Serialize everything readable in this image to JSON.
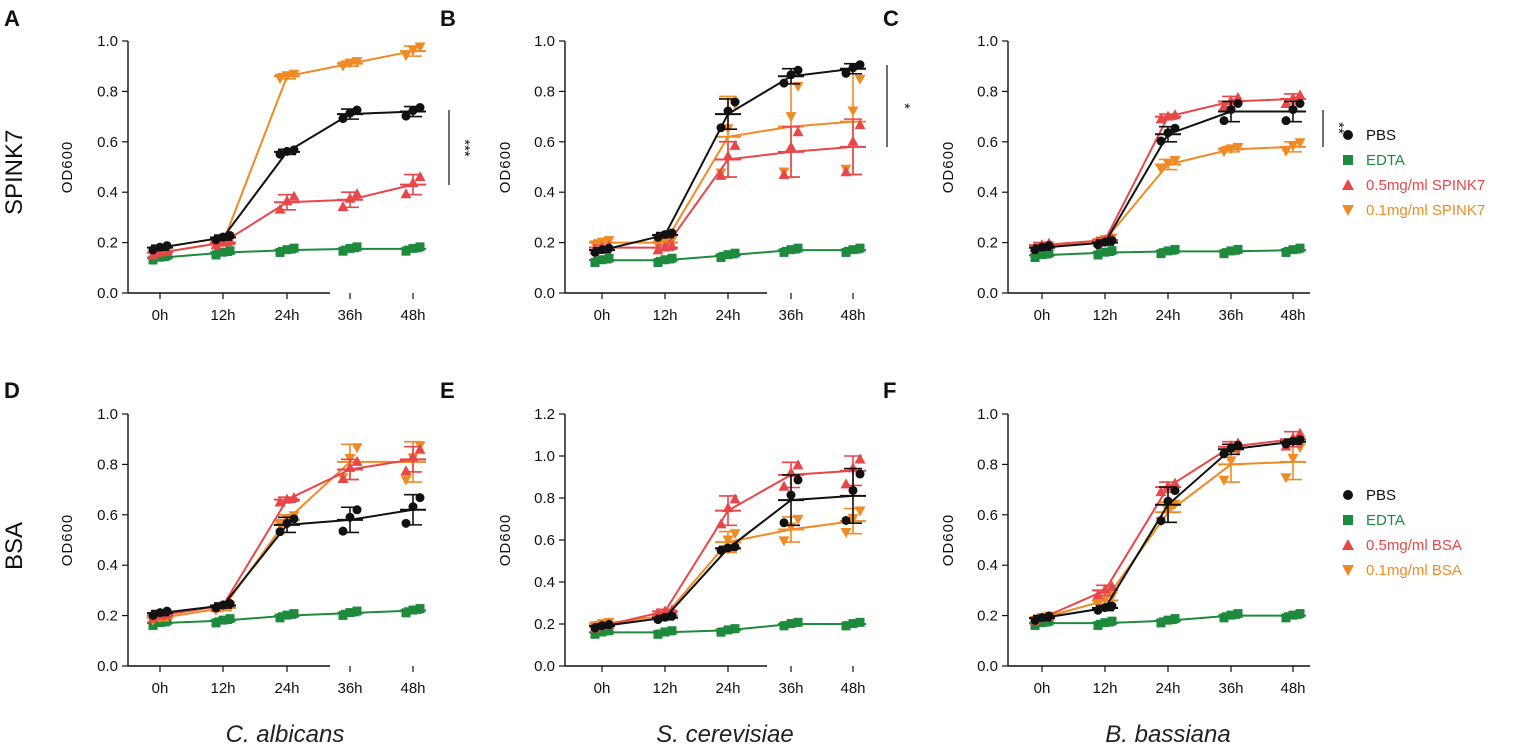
{
  "row_labels": [
    "SPINK7",
    "BSA"
  ],
  "species_labels": [
    "C. albicans",
    "S. cerevisiae",
    "B. bassiana"
  ],
  "colors": {
    "PBS": "#111111",
    "EDTA": "#1e8a3c",
    "high": "#e8474a",
    "low": "#f08a24"
  },
  "legends": [
    {
      "items": [
        {
          "label": "PBS",
          "series": "PBS",
          "marker": "circle"
        },
        {
          "label": "EDTA",
          "series": "EDTA",
          "marker": "square"
        },
        {
          "label": "0.5mg/ml  SPINK7",
          "series": "high",
          "marker": "triangle-up"
        },
        {
          "label": "0.1mg/ml  SPINK7",
          "series": "low",
          "marker": "triangle-down"
        }
      ]
    },
    {
      "items": [
        {
          "label": "PBS",
          "series": "PBS",
          "marker": "circle"
        },
        {
          "label": "EDTA",
          "series": "EDTA",
          "marker": "square"
        },
        {
          "label": "0.5mg/ml  BSA",
          "series": "high",
          "marker": "triangle-up"
        },
        {
          "label": "0.1mg/ml  BSA",
          "series": "low",
          "marker": "triangle-down"
        }
      ]
    }
  ],
  "chart_data": [
    {
      "panel": "A",
      "type": "line",
      "xlabel": "",
      "ylabel": "OD600",
      "categories": [
        "0h",
        "12h",
        "24h",
        "36h",
        "48h"
      ],
      "ylim": [
        0,
        1.0
      ],
      "yticks": [
        "0.0",
        "0.2",
        "0.4",
        "0.6",
        "0.8",
        "1.0"
      ],
      "significance": "***",
      "series": [
        {
          "name": "PBS",
          "values": [
            0.18,
            0.22,
            0.56,
            0.71,
            0.72
          ],
          "err": [
            0.01,
            0.01,
            0.01,
            0.02,
            0.02
          ]
        },
        {
          "name": "EDTA",
          "values": [
            0.14,
            0.16,
            0.17,
            0.175,
            0.175
          ],
          "err": [
            0.01,
            0.01,
            0.01,
            0.01,
            0.01
          ]
        },
        {
          "name": "0.5mg/ml SPINK7",
          "values": [
            0.16,
            0.2,
            0.36,
            0.37,
            0.43
          ],
          "err": [
            0.01,
            0.01,
            0.03,
            0.03,
            0.04
          ]
        },
        {
          "name": "0.1mg/ml SPINK7",
          "values": [
            0.16,
            0.2,
            0.86,
            0.91,
            0.96
          ],
          "err": [
            0.01,
            0.01,
            0.01,
            0.01,
            0.02
          ]
        }
      ]
    },
    {
      "panel": "B",
      "type": "line",
      "xlabel": "",
      "ylabel": "OD600",
      "categories": [
        "0h",
        "12h",
        "24h",
        "36h",
        "48h"
      ],
      "ylim": [
        0,
        1.0
      ],
      "yticks": [
        "0.0",
        "0.2",
        "0.4",
        "0.6",
        "0.8",
        "1.0"
      ],
      "significance": "*",
      "series": [
        {
          "name": "PBS",
          "values": [
            0.17,
            0.23,
            0.71,
            0.86,
            0.89
          ],
          "err": [
            0.01,
            0.01,
            0.06,
            0.03,
            0.02
          ]
        },
        {
          "name": "EDTA",
          "values": [
            0.13,
            0.13,
            0.15,
            0.17,
            0.17
          ],
          "err": [
            0.01,
            0.01,
            0.01,
            0.01,
            0.01
          ]
        },
        {
          "name": "0.5mg/ml SPINK7",
          "values": [
            0.18,
            0.18,
            0.53,
            0.56,
            0.58
          ],
          "err": [
            0.01,
            0.01,
            0.07,
            0.1,
            0.11
          ]
        },
        {
          "name": "0.1mg/ml SPINK7",
          "values": [
            0.2,
            0.2,
            0.62,
            0.66,
            0.68
          ],
          "err": [
            0.01,
            0.01,
            0.16,
            0.2,
            0.21
          ]
        }
      ]
    },
    {
      "panel": "C",
      "type": "line",
      "xlabel": "",
      "ylabel": "OD600",
      "categories": [
        "0h",
        "12h",
        "24h",
        "36h",
        "48h"
      ],
      "ylim": [
        0,
        1.0
      ],
      "yticks": [
        "0.0",
        "0.2",
        "0.4",
        "0.6",
        "0.8",
        "1.0"
      ],
      "significance": "**",
      "series": [
        {
          "name": "PBS",
          "values": [
            0.18,
            0.2,
            0.63,
            0.72,
            0.72
          ],
          "err": [
            0.01,
            0.01,
            0.03,
            0.04,
            0.04
          ]
        },
        {
          "name": "EDTA",
          "values": [
            0.15,
            0.16,
            0.165,
            0.165,
            0.17
          ],
          "err": [
            0.01,
            0.01,
            0.01,
            0.01,
            0.01
          ]
        },
        {
          "name": "0.5mg/ml SPINK7",
          "values": [
            0.19,
            0.21,
            0.7,
            0.76,
            0.77
          ],
          "err": [
            0.01,
            0.01,
            0.01,
            0.02,
            0.02
          ]
        },
        {
          "name": "0.1mg/ml SPINK7",
          "values": [
            0.18,
            0.21,
            0.51,
            0.57,
            0.58
          ],
          "err": [
            0.01,
            0.01,
            0.02,
            0.01,
            0.02
          ]
        }
      ]
    },
    {
      "panel": "D",
      "type": "line",
      "xlabel": "",
      "ylabel": "OD600",
      "categories": [
        "0h",
        "12h",
        "24h",
        "36h",
        "48h"
      ],
      "ylim": [
        0,
        1.0
      ],
      "yticks": [
        "0.0",
        "0.2",
        "0.4",
        "0.6",
        "0.8",
        "1.0"
      ],
      "series": [
        {
          "name": "PBS",
          "values": [
            0.21,
            0.24,
            0.56,
            0.58,
            0.62
          ],
          "err": [
            0.01,
            0.01,
            0.03,
            0.05,
            0.06
          ]
        },
        {
          "name": "EDTA",
          "values": [
            0.17,
            0.18,
            0.2,
            0.21,
            0.22
          ],
          "err": [
            0.01,
            0.01,
            0.01,
            0.01,
            0.01
          ]
        },
        {
          "name": "0.5mg/ml BSA",
          "values": [
            0.2,
            0.24,
            0.66,
            0.78,
            0.82
          ],
          "err": [
            0.01,
            0.01,
            0.01,
            0.04,
            0.05
          ]
        },
        {
          "name": "0.1mg/ml BSA",
          "values": [
            0.19,
            0.23,
            0.58,
            0.81,
            0.81
          ],
          "err": [
            0.01,
            0.01,
            0.02,
            0.07,
            0.08
          ]
        }
      ]
    },
    {
      "panel": "E",
      "type": "line",
      "xlabel": "",
      "ylabel": "OD600",
      "categories": [
        "0h",
        "12h",
        "24h",
        "36h",
        "48h"
      ],
      "ylim": [
        0,
        1.2
      ],
      "yticks": [
        "0.0",
        "0.2",
        "0.4",
        "0.6",
        "0.8",
        "1.0",
        "1.2"
      ],
      "series": [
        {
          "name": "PBS",
          "values": [
            0.19,
            0.23,
            0.56,
            0.79,
            0.81
          ],
          "err": [
            0.01,
            0.01,
            0.01,
            0.12,
            0.13
          ]
        },
        {
          "name": "EDTA",
          "values": [
            0.16,
            0.16,
            0.17,
            0.2,
            0.2
          ],
          "err": [
            0.01,
            0.01,
            0.01,
            0.01,
            0.01
          ]
        },
        {
          "name": "0.5mg/ml BSA",
          "values": [
            0.19,
            0.26,
            0.74,
            0.91,
            0.93
          ],
          "err": [
            0.01,
            0.01,
            0.07,
            0.06,
            0.07
          ]
        },
        {
          "name": "0.1mg/ml BSA",
          "values": [
            0.2,
            0.24,
            0.59,
            0.65,
            0.69
          ],
          "err": [
            0.01,
            0.01,
            0.05,
            0.06,
            0.06
          ]
        }
      ]
    },
    {
      "panel": "F",
      "type": "line",
      "xlabel": "",
      "ylabel": "OD600",
      "categories": [
        "0h",
        "12h",
        "24h",
        "36h",
        "48h"
      ],
      "ylim": [
        0,
        1.0
      ],
      "yticks": [
        "0.0",
        "0.2",
        "0.4",
        "0.6",
        "0.8",
        "1.0"
      ],
      "series": [
        {
          "name": "PBS",
          "values": [
            0.19,
            0.23,
            0.64,
            0.86,
            0.89
          ],
          "err": [
            0.01,
            0.01,
            0.07,
            0.02,
            0.01
          ]
        },
        {
          "name": "EDTA",
          "values": [
            0.17,
            0.17,
            0.18,
            0.2,
            0.2
          ],
          "err": [
            0.01,
            0.01,
            0.01,
            0.01,
            0.01
          ]
        },
        {
          "name": "0.5mg/ml BSA",
          "values": [
            0.19,
            0.3,
            0.71,
            0.87,
            0.9
          ],
          "err": [
            0.01,
            0.02,
            0.02,
            0.02,
            0.03
          ]
        },
        {
          "name": "0.1mg/ml BSA",
          "values": [
            0.19,
            0.26,
            0.61,
            0.8,
            0.81
          ],
          "err": [
            0.01,
            0.02,
            0.04,
            0.07,
            0.07
          ]
        }
      ]
    }
  ]
}
